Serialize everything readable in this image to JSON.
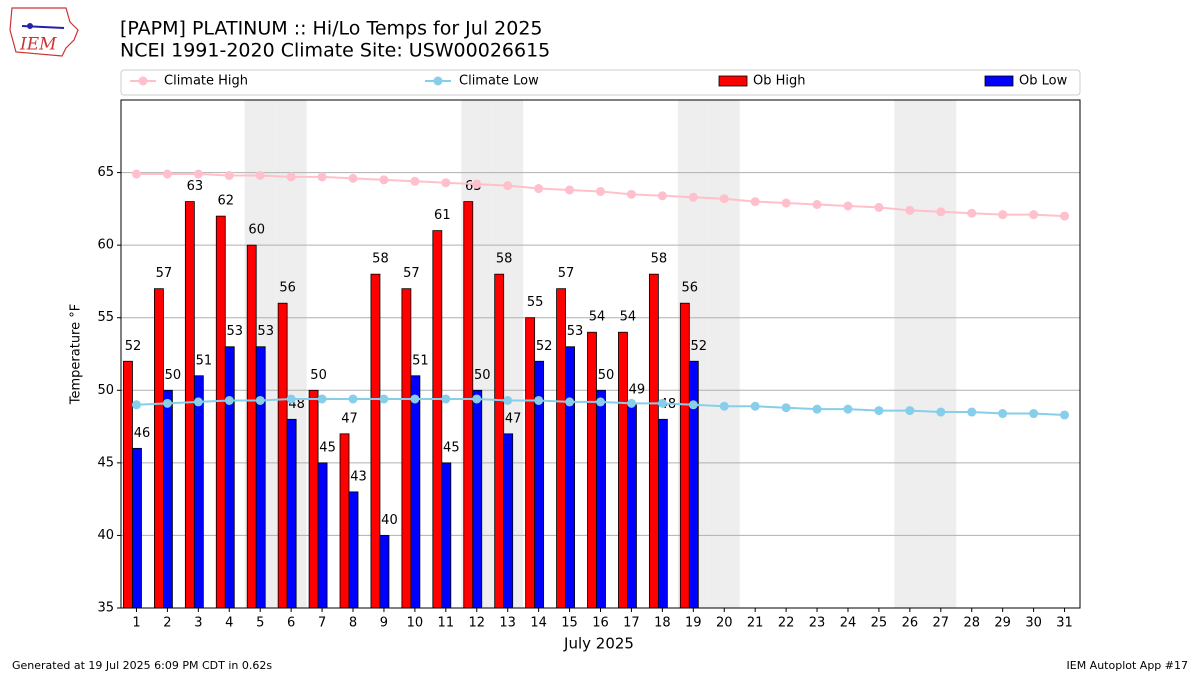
{
  "chart_data": {
    "type": "bar",
    "title": "[PAPM] PLATINUM :: Hi/Lo Temps for Jul 2025",
    "subtitle": "NCEI 1991-2020 Climate Site: USW00026615",
    "xlabel": "July 2025",
    "ylabel": "Temperature °F",
    "footer_left": "Generated at 19 Jul 2025 6:09 PM CDT in 0.62s",
    "footer_right": "IEM Autoplot App #17",
    "logo_text": "IEM",
    "x": [
      1,
      2,
      3,
      4,
      5,
      6,
      7,
      8,
      9,
      10,
      11,
      12,
      13,
      14,
      15,
      16,
      17,
      18,
      19,
      20,
      21,
      22,
      23,
      24,
      25,
      26,
      27,
      28,
      29,
      30,
      31
    ],
    "xlim": [
      0.5,
      31.5
    ],
    "xticks": [
      1,
      2,
      3,
      4,
      5,
      6,
      7,
      8,
      9,
      10,
      11,
      12,
      13,
      14,
      15,
      16,
      17,
      18,
      19,
      20,
      21,
      22,
      23,
      24,
      25,
      26,
      27,
      28,
      29,
      30,
      31
    ],
    "ylim": [
      35,
      70
    ],
    "yticks": [
      35,
      40,
      45,
      50,
      55,
      60,
      65
    ],
    "grid": true,
    "weekend_days": [
      5,
      6,
      12,
      13,
      19,
      20,
      26,
      27
    ],
    "series": [
      {
        "name": "Climate High",
        "kind": "line",
        "color": "#ffc0cb",
        "values": [
          64.9,
          64.9,
          64.9,
          64.8,
          64.8,
          64.7,
          64.7,
          64.6,
          64.5,
          64.4,
          64.3,
          64.2,
          64.1,
          63.9,
          63.8,
          63.7,
          63.5,
          63.4,
          63.3,
          63.2,
          63.0,
          62.9,
          62.8,
          62.7,
          62.6,
          62.4,
          62.3,
          62.2,
          62.1,
          62.1,
          62.0
        ]
      },
      {
        "name": "Climate Low",
        "kind": "line",
        "color": "#87ceeb",
        "values": [
          49.0,
          49.1,
          49.2,
          49.3,
          49.3,
          49.4,
          49.4,
          49.4,
          49.4,
          49.4,
          49.4,
          49.4,
          49.3,
          49.3,
          49.2,
          49.2,
          49.1,
          49.1,
          49.0,
          48.9,
          48.9,
          48.8,
          48.7,
          48.7,
          48.6,
          48.6,
          48.5,
          48.5,
          48.4,
          48.4,
          48.3
        ]
      },
      {
        "name": "Ob High",
        "kind": "bar",
        "color": "#ff0000",
        "values": [
          52,
          57,
          63,
          62,
          60,
          56,
          50,
          47,
          58,
          57,
          61,
          63,
          58,
          55,
          57,
          54,
          54,
          58,
          56,
          null,
          null,
          null,
          null,
          null,
          null,
          null,
          null,
          null,
          null,
          null,
          null
        ]
      },
      {
        "name": "Ob Low",
        "kind": "bar",
        "color": "#0000ff",
        "values": [
          46,
          50,
          51,
          53,
          53,
          48,
          45,
          43,
          40,
          51,
          45,
          50,
          47,
          52,
          53,
          50,
          49,
          48,
          52,
          null,
          null,
          null,
          null,
          null,
          null,
          null,
          null,
          null,
          null,
          null,
          null
        ]
      }
    ]
  }
}
